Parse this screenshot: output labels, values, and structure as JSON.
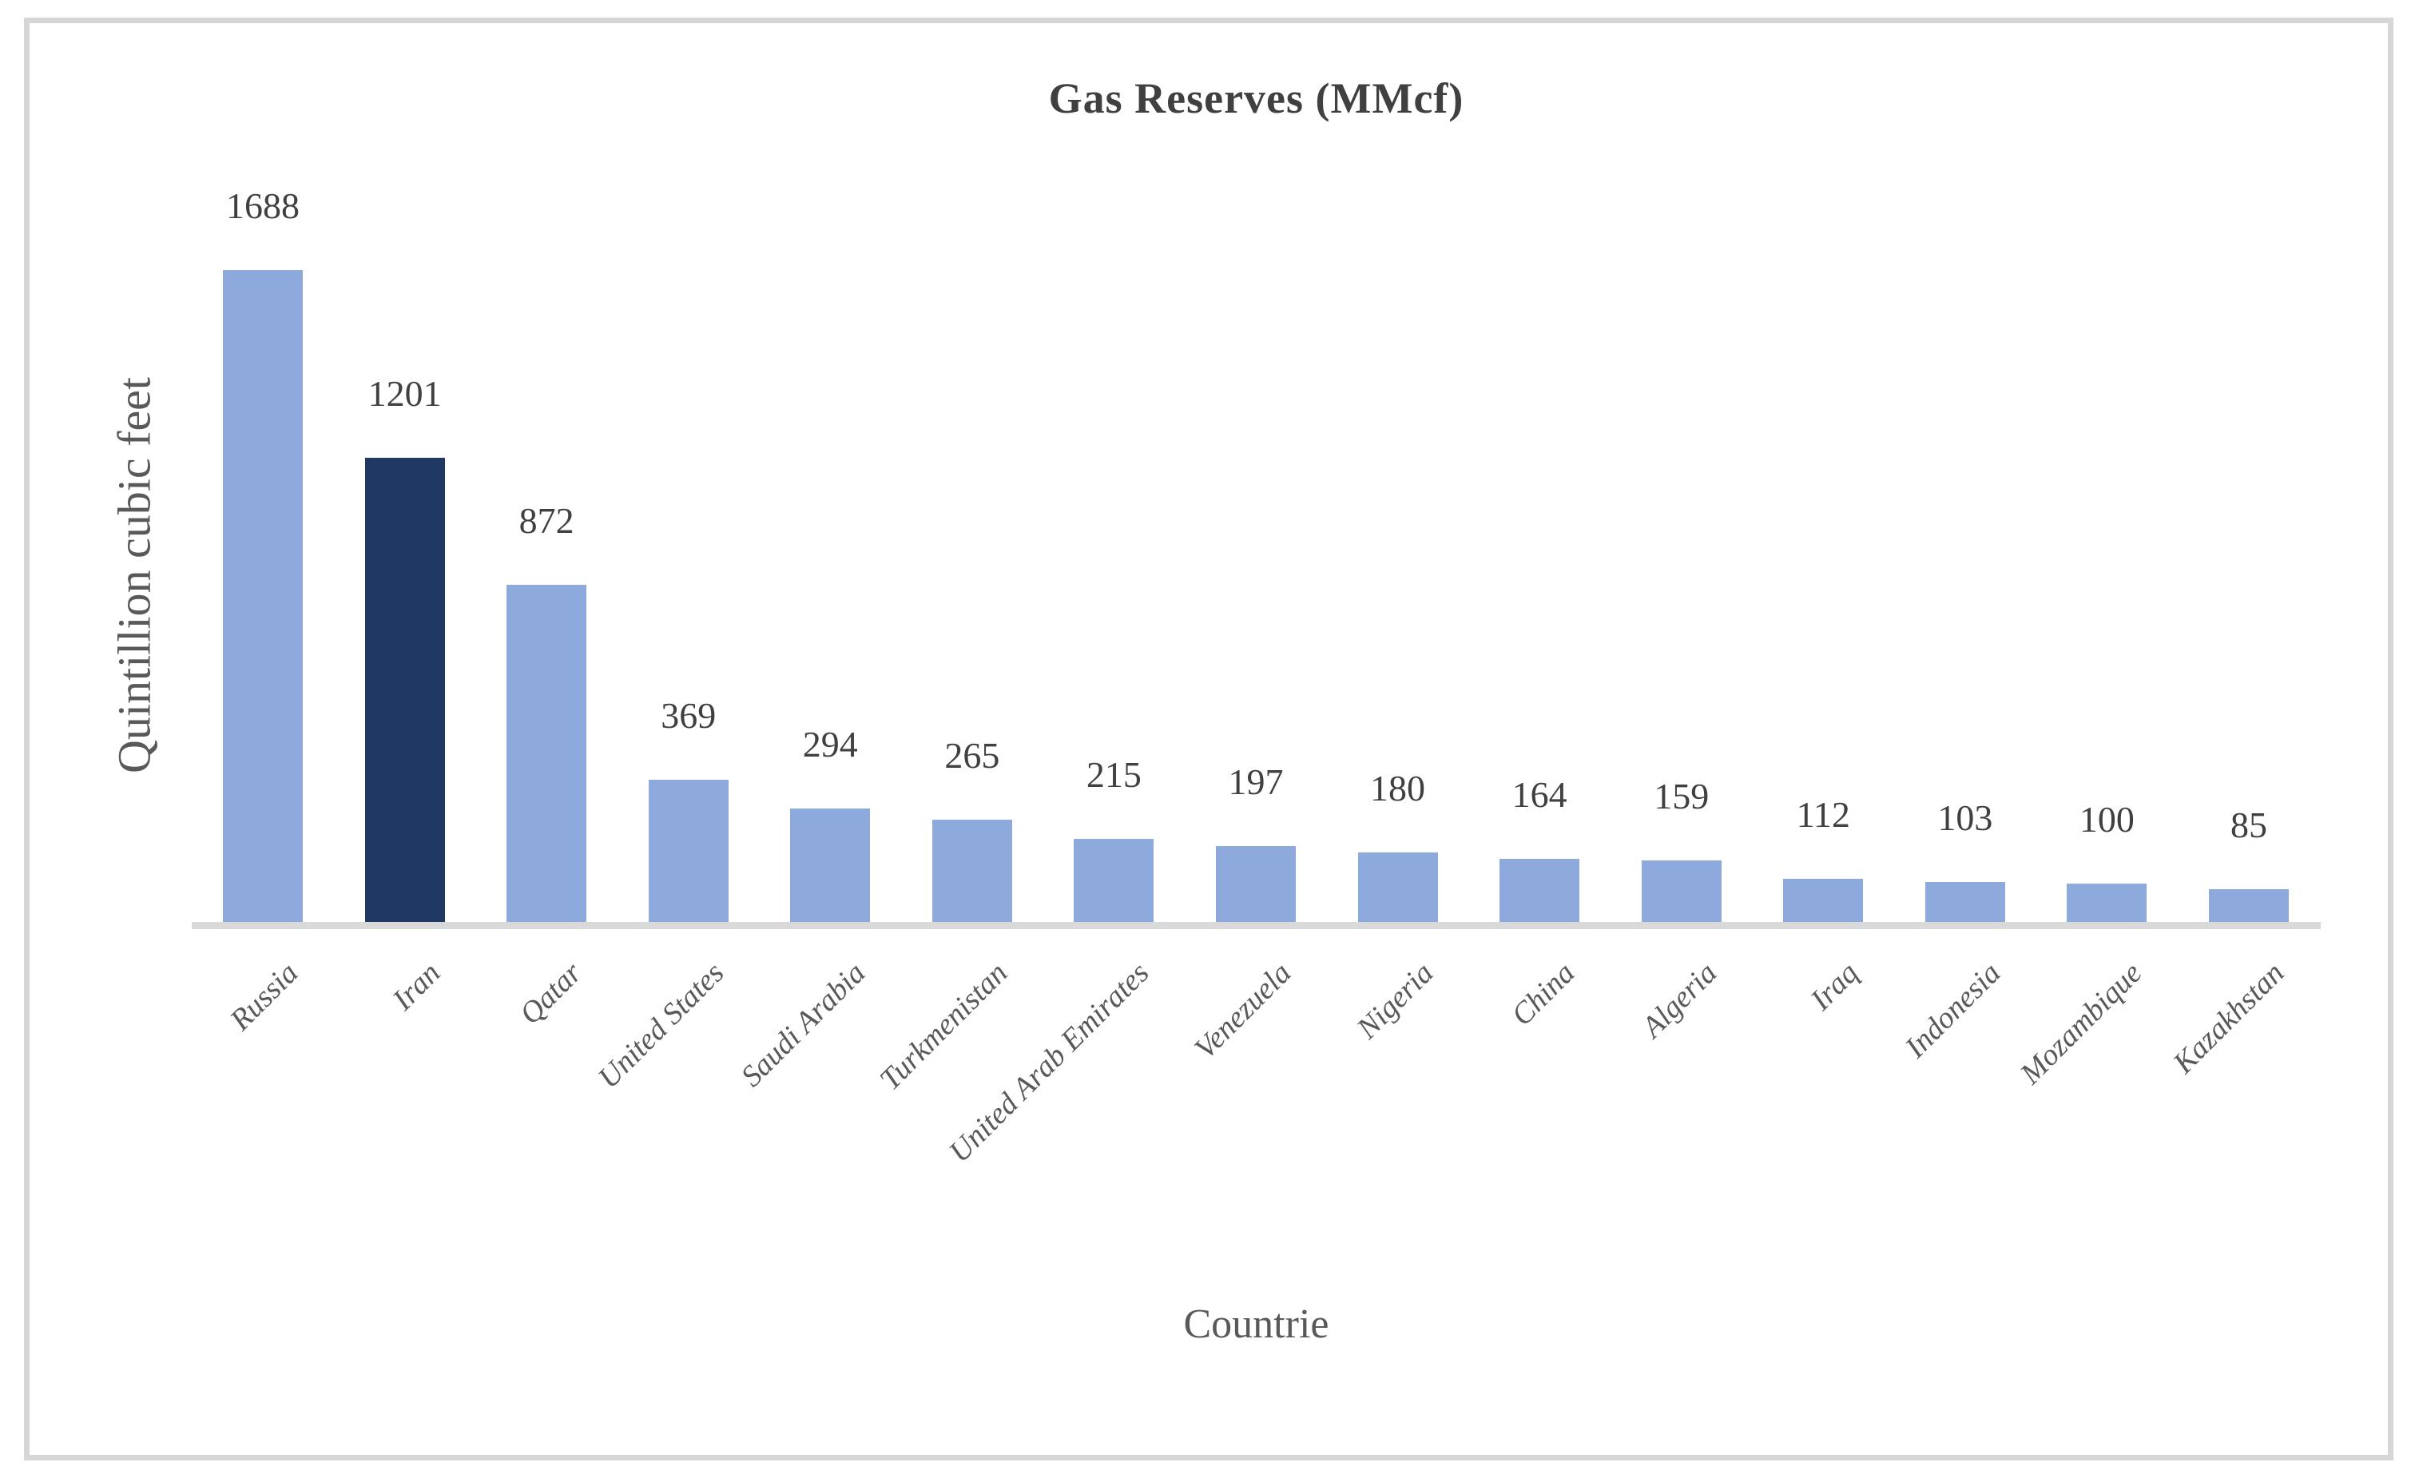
{
  "chart_data": {
    "type": "bar",
    "title": "Gas Reserves (MMcf)",
    "xlabel": "Countrie",
    "ylabel": "Quintillion cubic feet",
    "categories": [
      "Russia",
      "Iran",
      "Qatar",
      "United States",
      "Saudi Arabia",
      "Turkmenistan",
      "United Arab Emirates",
      "Venezuela",
      "Nigeria",
      "China",
      "Algeria",
      "Iraq",
      "Indonesia",
      "Mozambique",
      "Kazakhstan"
    ],
    "values": [
      1688,
      1201,
      872,
      369,
      294,
      265,
      215,
      197,
      180,
      164,
      159,
      112,
      103,
      100,
      85
    ],
    "data_labels": [
      1688,
      1201,
      872,
      369,
      294,
      265,
      215,
      197,
      180,
      164,
      159,
      112,
      103,
      100,
      85
    ],
    "ylim": [
      0,
      1688
    ],
    "grid": false,
    "legend": false,
    "highlight_category": "Iran",
    "bar_color_default": "#8EA9DB",
    "bar_color_highlight": "#1F3864"
  },
  "colors": {
    "axis_line": "#D9D9D9",
    "chart_border": "#D6D6D6",
    "title_text": "#404040",
    "data_label_text": "#404040",
    "tick_label_text": "#595959"
  }
}
